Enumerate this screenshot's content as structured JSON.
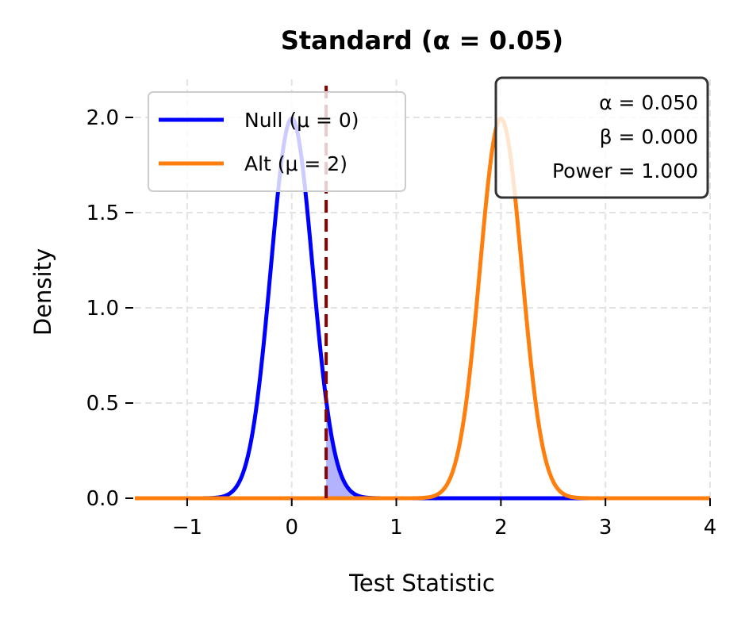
{
  "chart_data": {
    "type": "line",
    "title": "Standard (α = 0.05)",
    "xlabel": "Test Statistic",
    "ylabel": "Density",
    "xlim": [
      -1.5,
      4
    ],
    "ylim": [
      0,
      2.2
    ],
    "xticks": [
      -1,
      0,
      1,
      2,
      3,
      4
    ],
    "xtick_labels": [
      "−1",
      "0",
      "1",
      "2",
      "3",
      "4"
    ],
    "yticks": [
      0,
      0.5,
      1.0,
      1.5,
      2.0
    ],
    "ytick_labels": [
      "0.0",
      "0.5",
      "1.0",
      "1.5",
      "2.0"
    ],
    "grid": true,
    "legend_placement": "upper-left",
    "series": [
      {
        "name": "Null (μ = 0)",
        "distribution": "normal",
        "mean": 0,
        "sd": 0.2,
        "color": "#0000ff"
      },
      {
        "name": "Alt (μ = 2)",
        "distribution": "normal",
        "mean": 2,
        "sd": 0.2,
        "color": "#ff7f0e"
      }
    ],
    "critical_value": 0.329,
    "critical_line_color": "#8b0000",
    "alpha_region_fill": "#0000ff",
    "stats_box": [
      "α = 0.050",
      "β = 0.000",
      "Power = 1.000"
    ]
  }
}
